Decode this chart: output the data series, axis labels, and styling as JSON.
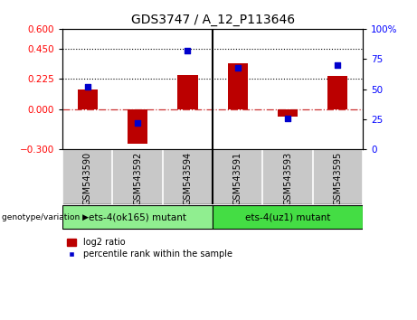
{
  "title": "GDS3747 / A_12_P113646",
  "categories": [
    "GSM543590",
    "GSM543592",
    "GSM543594",
    "GSM543591",
    "GSM543593",
    "GSM543595"
  ],
  "log2_ratio": [
    0.15,
    -0.26,
    0.255,
    0.345,
    -0.055,
    0.245
  ],
  "percentile_rank": [
    52,
    22,
    82,
    68,
    26,
    70
  ],
  "ylim_left": [
    -0.3,
    0.6
  ],
  "ylim_right": [
    0,
    100
  ],
  "yticks_left": [
    -0.3,
    0,
    0.225,
    0.45,
    0.6
  ],
  "yticks_right": [
    0,
    25,
    50,
    75,
    100
  ],
  "hlines": [
    0.225,
    0.45
  ],
  "bar_color": "#BB0000",
  "dot_color": "#0000CC",
  "zero_line_color": "#CC3333",
  "group1_label": "ets-4(ok165) mutant",
  "group2_label": "ets-4(uz1) mutant",
  "group1_indices": [
    0,
    1,
    2
  ],
  "group2_indices": [
    3,
    4,
    5
  ],
  "group1_color": "#90EE90",
  "group2_color": "#44DD44",
  "genotype_label": "genotype/variation",
  "legend_bar_label": "log2 ratio",
  "legend_dot_label": "percentile rank within the sample",
  "background_color": "#FFFFFF",
  "plot_bg_color": "#FFFFFF",
  "label_bg_color": "#C8C8C8",
  "tick_label_fontsize": 7.5,
  "title_fontsize": 10,
  "bar_width": 0.4
}
